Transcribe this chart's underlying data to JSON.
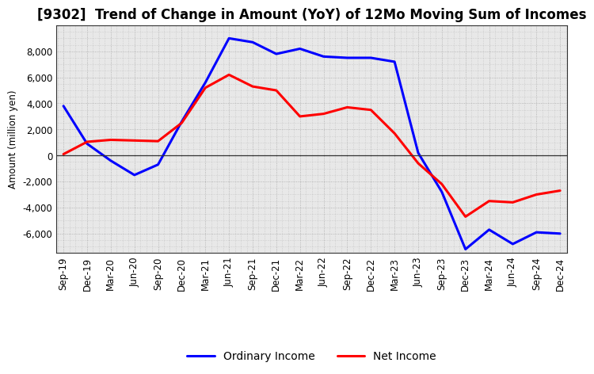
{
  "title": "[9302]  Trend of Change in Amount (YoY) of 12Mo Moving Sum of Incomes",
  "ylabel": "Amount (million yen)",
  "labels": [
    "Sep-19",
    "Dec-19",
    "Mar-20",
    "Jun-20",
    "Sep-20",
    "Dec-20",
    "Mar-21",
    "Jun-21",
    "Sep-21",
    "Dec-21",
    "Mar-22",
    "Jun-22",
    "Sep-22",
    "Dec-22",
    "Mar-23",
    "Jun-23",
    "Sep-23",
    "Dec-23",
    "Mar-24",
    "Jun-24",
    "Sep-24",
    "Dec-24"
  ],
  "ordinary_income": [
    3800,
    900,
    -400,
    -1500,
    -700,
    2600,
    5600,
    9000,
    8700,
    7800,
    8200,
    7600,
    7500,
    7500,
    7200,
    200,
    -2800,
    -7200,
    -5700,
    -6800,
    -5900,
    -6000
  ],
  "net_income": [
    100,
    1050,
    1200,
    1150,
    1100,
    2500,
    5200,
    6200,
    5300,
    5000,
    3000,
    3200,
    3700,
    3500,
    1700,
    -600,
    -2200,
    -4700,
    -3500,
    -3600,
    -3000,
    -2700
  ],
  "ordinary_color": "#0000ff",
  "net_color": "#ff0000",
  "background_color": "#ffffff",
  "plot_bg_color": "#e8e8e8",
  "grid_color": "#999999",
  "ylim": [
    -7500,
    10000
  ],
  "yticks": [
    -6000,
    -4000,
    -2000,
    0,
    2000,
    4000,
    6000,
    8000
  ],
  "linewidth": 2.2,
  "title_fontsize": 12,
  "legend_fontsize": 10,
  "axis_fontsize": 8.5
}
